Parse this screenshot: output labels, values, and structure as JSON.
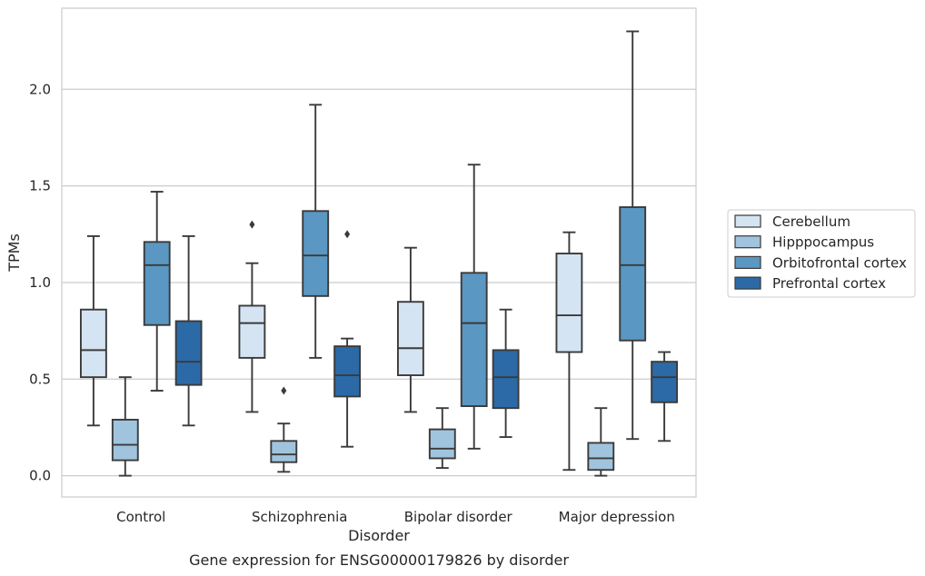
{
  "chart_data": {
    "type": "box",
    "title": "",
    "caption": "Gene expression for ENSG00000179826 by disorder",
    "xlabel": "Disorder",
    "ylabel": "TPMs",
    "ylim": [
      -0.11,
      2.42
    ],
    "yticks": [
      "0.0",
      "0.5",
      "1.0",
      "1.5",
      "2.0"
    ],
    "grid": "horizontal",
    "legend_position": "right",
    "categories": [
      "Control",
      "Schizophrenia",
      "Bipolar disorder",
      "Major depression"
    ],
    "series": [
      {
        "name": "Cerebellum",
        "color": "#d5e4f2",
        "boxes": [
          {
            "whisker_low": 0.26,
            "q1": 0.51,
            "median": 0.65,
            "q3": 0.86,
            "whisker_high": 1.24,
            "outliers": []
          },
          {
            "whisker_low": 0.33,
            "q1": 0.61,
            "median": 0.79,
            "q3": 0.88,
            "whisker_high": 1.1,
            "outliers": [
              1.3
            ]
          },
          {
            "whisker_low": 0.33,
            "q1": 0.52,
            "median": 0.66,
            "q3": 0.9,
            "whisker_high": 1.18,
            "outliers": []
          },
          {
            "whisker_low": 0.03,
            "q1": 0.64,
            "median": 0.83,
            "q3": 1.15,
            "whisker_high": 1.26,
            "outliers": []
          }
        ]
      },
      {
        "name": "Hipppocampus",
        "color": "#a0c4dd",
        "boxes": [
          {
            "whisker_low": 0.0,
            "q1": 0.08,
            "median": 0.16,
            "q3": 0.29,
            "whisker_high": 0.51,
            "outliers": []
          },
          {
            "whisker_low": 0.02,
            "q1": 0.07,
            "median": 0.11,
            "q3": 0.18,
            "whisker_high": 0.27,
            "outliers": [
              0.44
            ]
          },
          {
            "whisker_low": 0.04,
            "q1": 0.09,
            "median": 0.14,
            "q3": 0.24,
            "whisker_high": 0.35,
            "outliers": []
          },
          {
            "whisker_low": 0.0,
            "q1": 0.03,
            "median": 0.09,
            "q3": 0.17,
            "whisker_high": 0.35,
            "outliers": []
          }
        ]
      },
      {
        "name": "Orbitofrontal cortex",
        "color": "#5a97c2",
        "boxes": [
          {
            "whisker_low": 0.44,
            "q1": 0.78,
            "median": 1.09,
            "q3": 1.21,
            "whisker_high": 1.47,
            "outliers": []
          },
          {
            "whisker_low": 0.61,
            "q1": 0.93,
            "median": 1.14,
            "q3": 1.37,
            "whisker_high": 1.92,
            "outliers": []
          },
          {
            "whisker_low": 0.14,
            "q1": 0.36,
            "median": 0.79,
            "q3": 1.05,
            "whisker_high": 1.61,
            "outliers": []
          },
          {
            "whisker_low": 0.19,
            "q1": 0.7,
            "median": 1.09,
            "q3": 1.39,
            "whisker_high": 2.3,
            "outliers": []
          }
        ]
      },
      {
        "name": "Prefrontal cortex",
        "color": "#2b6aa7",
        "boxes": [
          {
            "whisker_low": 0.26,
            "q1": 0.47,
            "median": 0.59,
            "q3": 0.8,
            "whisker_high": 1.24,
            "outliers": []
          },
          {
            "whisker_low": 0.15,
            "q1": 0.41,
            "median": 0.52,
            "q3": 0.67,
            "whisker_high": 0.71,
            "outliers": [
              1.25
            ]
          },
          {
            "whisker_low": 0.2,
            "q1": 0.35,
            "median": 0.51,
            "q3": 0.65,
            "whisker_high": 0.86,
            "outliers": []
          },
          {
            "whisker_low": 0.18,
            "q1": 0.38,
            "median": 0.51,
            "q3": 0.59,
            "whisker_high": 0.64,
            "outliers": []
          }
        ]
      }
    ],
    "colors": {
      "line": "#3a3a3a",
      "grid": "#cccccc",
      "frame": "#cccccc",
      "text": "#262626"
    }
  }
}
